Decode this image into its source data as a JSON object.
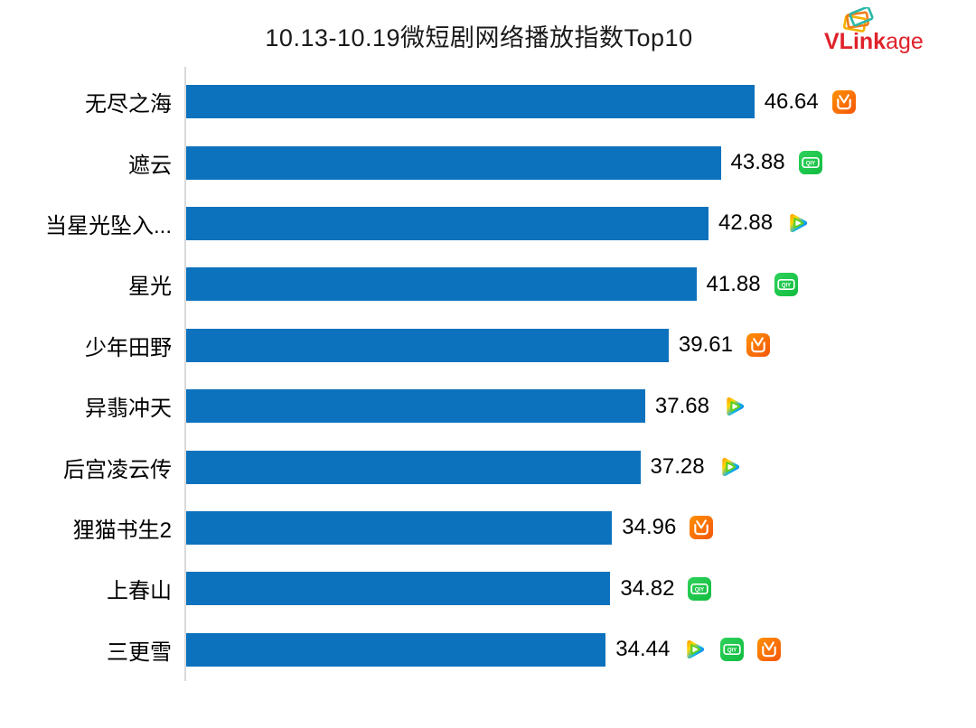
{
  "logo": {
    "text_bold": "VLink",
    "text_light": "age",
    "color": "#e0222a",
    "icon": "stacked-cards-icon"
  },
  "chart_data": {
    "type": "bar",
    "orientation": "horizontal",
    "title": "10.13-10.19微短剧网络播放指数Top10",
    "xlabel": "",
    "ylabel": "",
    "xlim": [
      0,
      50
    ],
    "grid": false,
    "legend": "none",
    "bar_color": "#0d72bd",
    "axis_line_color": "#d9d9d9",
    "categories": [
      "无尽之海",
      "遮云",
      "当星光坠入...",
      "星光",
      "少年田野",
      "异翡冲天",
      "后宫凌云传",
      "狸猫书生2",
      "上春山",
      "三更雪"
    ],
    "values": [
      46.64,
      43.88,
      42.88,
      41.88,
      39.61,
      37.68,
      37.28,
      34.96,
      34.82,
      34.44
    ],
    "platforms": [
      [
        "mgtv"
      ],
      [
        "iqiyi"
      ],
      [
        "tencent"
      ],
      [
        "iqiyi"
      ],
      [
        "mgtv"
      ],
      [
        "tencent"
      ],
      [
        "tencent"
      ],
      [
        "mgtv"
      ],
      [
        "iqiyi"
      ],
      [
        "tencent",
        "iqiyi",
        "mgtv"
      ]
    ],
    "platform_icons": {
      "mgtv": "mgtv-icon",
      "iqiyi": "iqiyi-icon",
      "tencent": "tencent-video-icon"
    }
  }
}
